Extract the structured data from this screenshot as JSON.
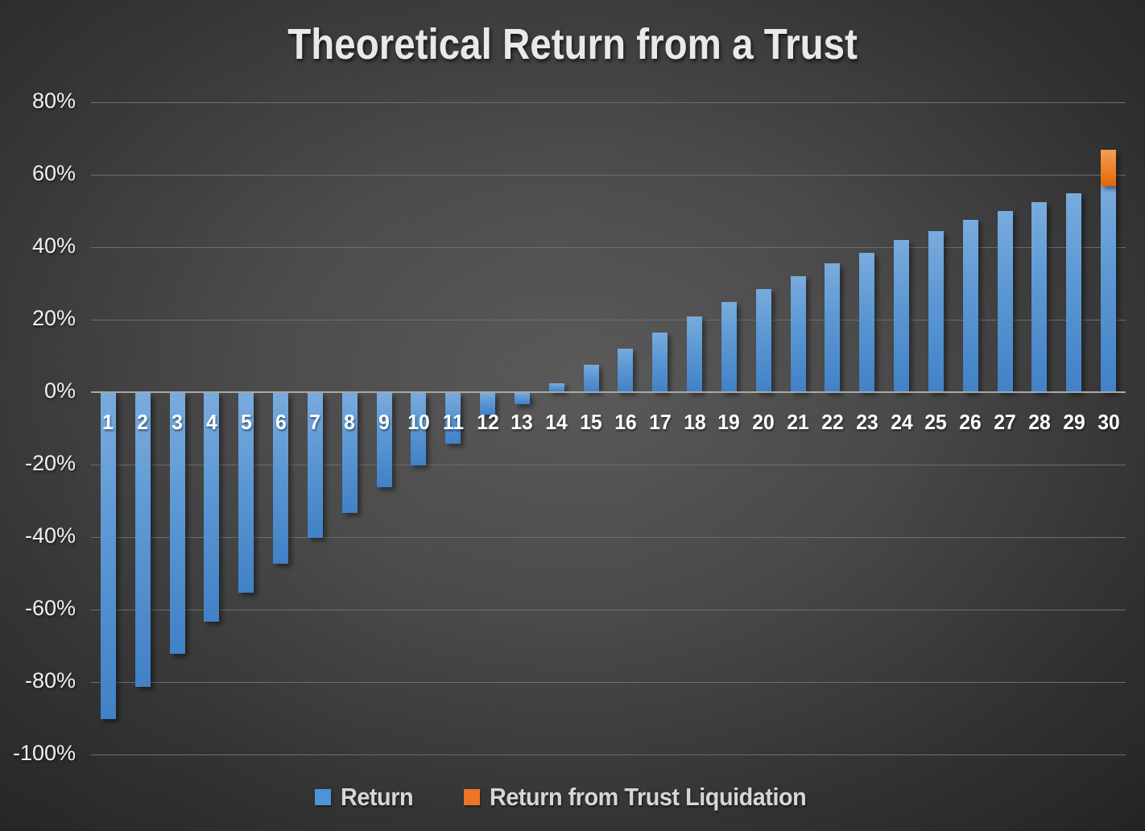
{
  "title": "Theoretical Return from a Trust",
  "legend": [
    {
      "label": "Return",
      "color": "#4f93d6"
    },
    {
      "label": "Return from Trust Liquidation",
      "color": "#ed7528"
    }
  ],
  "y_axis": {
    "tick_labels": [
      "80%",
      "60%",
      "40%",
      "20%",
      "0%",
      "-20%",
      "-40%",
      "-60%",
      "-80%",
      "-100%"
    ],
    "tick_values": [
      80,
      60,
      40,
      20,
      0,
      -20,
      -40,
      -60,
      -80,
      -100
    ]
  },
  "chart_data": {
    "type": "bar",
    "stacked": true,
    "title": "Theoretical Return from a Trust",
    "xlabel": "",
    "ylabel": "",
    "ylim": [
      -100,
      80
    ],
    "gridline_step": 20,
    "grid": true,
    "legend_position": "bottom",
    "categories": [
      "1",
      "2",
      "3",
      "4",
      "5",
      "6",
      "7",
      "8",
      "9",
      "10",
      "11",
      "12",
      "13",
      "14",
      "15",
      "16",
      "17",
      "18",
      "19",
      "20",
      "21",
      "22",
      "23",
      "24",
      "25",
      "26",
      "27",
      "28",
      "29",
      "30"
    ],
    "series": [
      {
        "name": "Return",
        "values": [
          -90,
          -81,
          -72,
          -63,
          -55,
          -47,
          -40,
          -33,
          -26,
          -20,
          -14,
          -6,
          -3,
          2.5,
          7.5,
          12,
          16.5,
          21,
          25,
          28.5,
          32,
          35.5,
          38.5,
          42,
          44.5,
          47.5,
          50,
          52.5,
          55,
          57
        ]
      },
      {
        "name": "Return from Trust Liquidation",
        "values": [
          0,
          0,
          0,
          0,
          0,
          0,
          0,
          0,
          0,
          0,
          0,
          0,
          0,
          0,
          0,
          0,
          0,
          0,
          0,
          0,
          0,
          0,
          0,
          0,
          0,
          0,
          0,
          0,
          0,
          10
        ]
      }
    ]
  },
  "colors": {
    "background_center": "#5b5b5b",
    "background_edge": "#242424",
    "gridline": "#6e6e6e",
    "zero_axis": "#a8a8a8",
    "title_text": "#e9e9e9",
    "axis_text": "#f0f0f0",
    "category_text": "#ffffff",
    "legend_text": "#d6d6d6"
  }
}
